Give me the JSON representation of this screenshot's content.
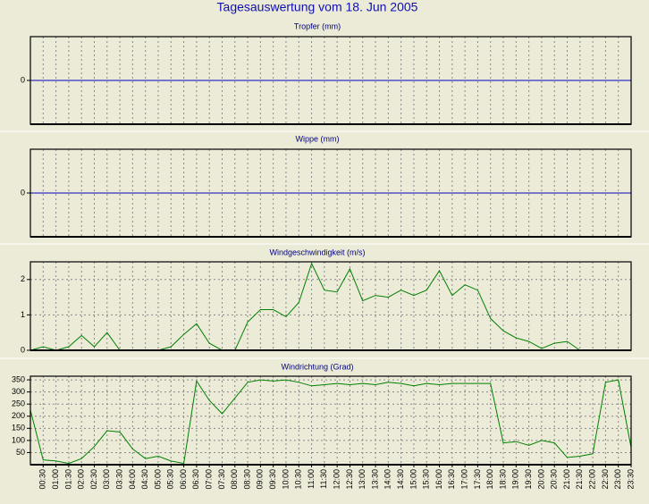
{
  "title": "Tagesauswertung vom 18. Jun 2005",
  "chart_data": [
    {
      "type": "line",
      "title": "Tropfer (mm)",
      "ylim": [
        -1,
        1
      ],
      "yticks": [
        0
      ],
      "zero_line_color": "#0000c0",
      "grid": true
    },
    {
      "type": "line",
      "title": "Wippe (mm)",
      "ylim": [
        -1,
        1
      ],
      "yticks": [
        0
      ],
      "zero_line_color": "#0000c0",
      "grid": true
    },
    {
      "type": "line",
      "title": "Windgeschwindigkeit (m/s)",
      "ylim": [
        0,
        2.5
      ],
      "yticks": [
        0,
        1,
        2
      ],
      "grid": true,
      "series": [
        {
          "name": "Windgeschwindigkeit",
          "color": "#008000",
          "values": [
            0,
            0.1,
            0,
            0.1,
            0.42,
            0.1,
            0.5,
            0,
            0,
            0,
            0,
            0.1,
            0.45,
            0.75,
            0.2,
            0,
            0,
            0.8,
            1.15,
            1.15,
            0.95,
            1.35,
            2.45,
            1.7,
            1.65,
            2.3,
            1.4,
            1.55,
            1.5,
            1.7,
            1.55,
            1.7,
            2.25,
            1.55,
            1.85,
            1.7,
            0.9,
            0.55,
            0.35,
            0.25,
            0.05,
            0.2,
            0.25,
            0,
            0,
            0,
            0,
            0
          ]
        }
      ]
    },
    {
      "type": "line",
      "title": "Windrichtung (Grad)",
      "ylim": [
        0,
        365
      ],
      "yticks": [
        50,
        100,
        150,
        200,
        250,
        300,
        350
      ],
      "grid": true,
      "categories": [
        null,
        "00:30",
        "01:00",
        "01:30",
        "02:00",
        "02:30",
        "03:00",
        "03:30",
        "04:00",
        "04:30",
        "05:00",
        "05:30",
        "06:00",
        "06:30",
        "07:00",
        "07:30",
        "08:00",
        "08:30",
        "09:00",
        "09:30",
        "10:00",
        "10:30",
        "11:00",
        "11:30",
        "12:00",
        "12:30",
        "13:00",
        "13:30",
        "14:00",
        "14:30",
        "15:00",
        "15:30",
        "16:00",
        "16:30",
        "17:00",
        "17:30",
        "18:00",
        "18:30",
        "19:00",
        "19:30",
        "20:00",
        "20:30",
        "21:00",
        "21:30",
        "22:00",
        "22:30",
        "23:00",
        "23:30"
      ],
      "series": [
        {
          "name": "Windrichtung",
          "color": "#008000",
          "values": [
            225,
            20,
            15,
            5,
            25,
            75,
            140,
            135,
            65,
            25,
            35,
            15,
            5,
            345,
            265,
            210,
            275,
            340,
            350,
            345,
            350,
            340,
            325,
            330,
            335,
            330,
            335,
            330,
            340,
            335,
            325,
            335,
            330,
            335,
            335,
            335,
            335,
            90,
            95,
            80,
            100,
            90,
            30,
            35,
            45,
            340,
            350,
            70
          ]
        }
      ]
    }
  ]
}
